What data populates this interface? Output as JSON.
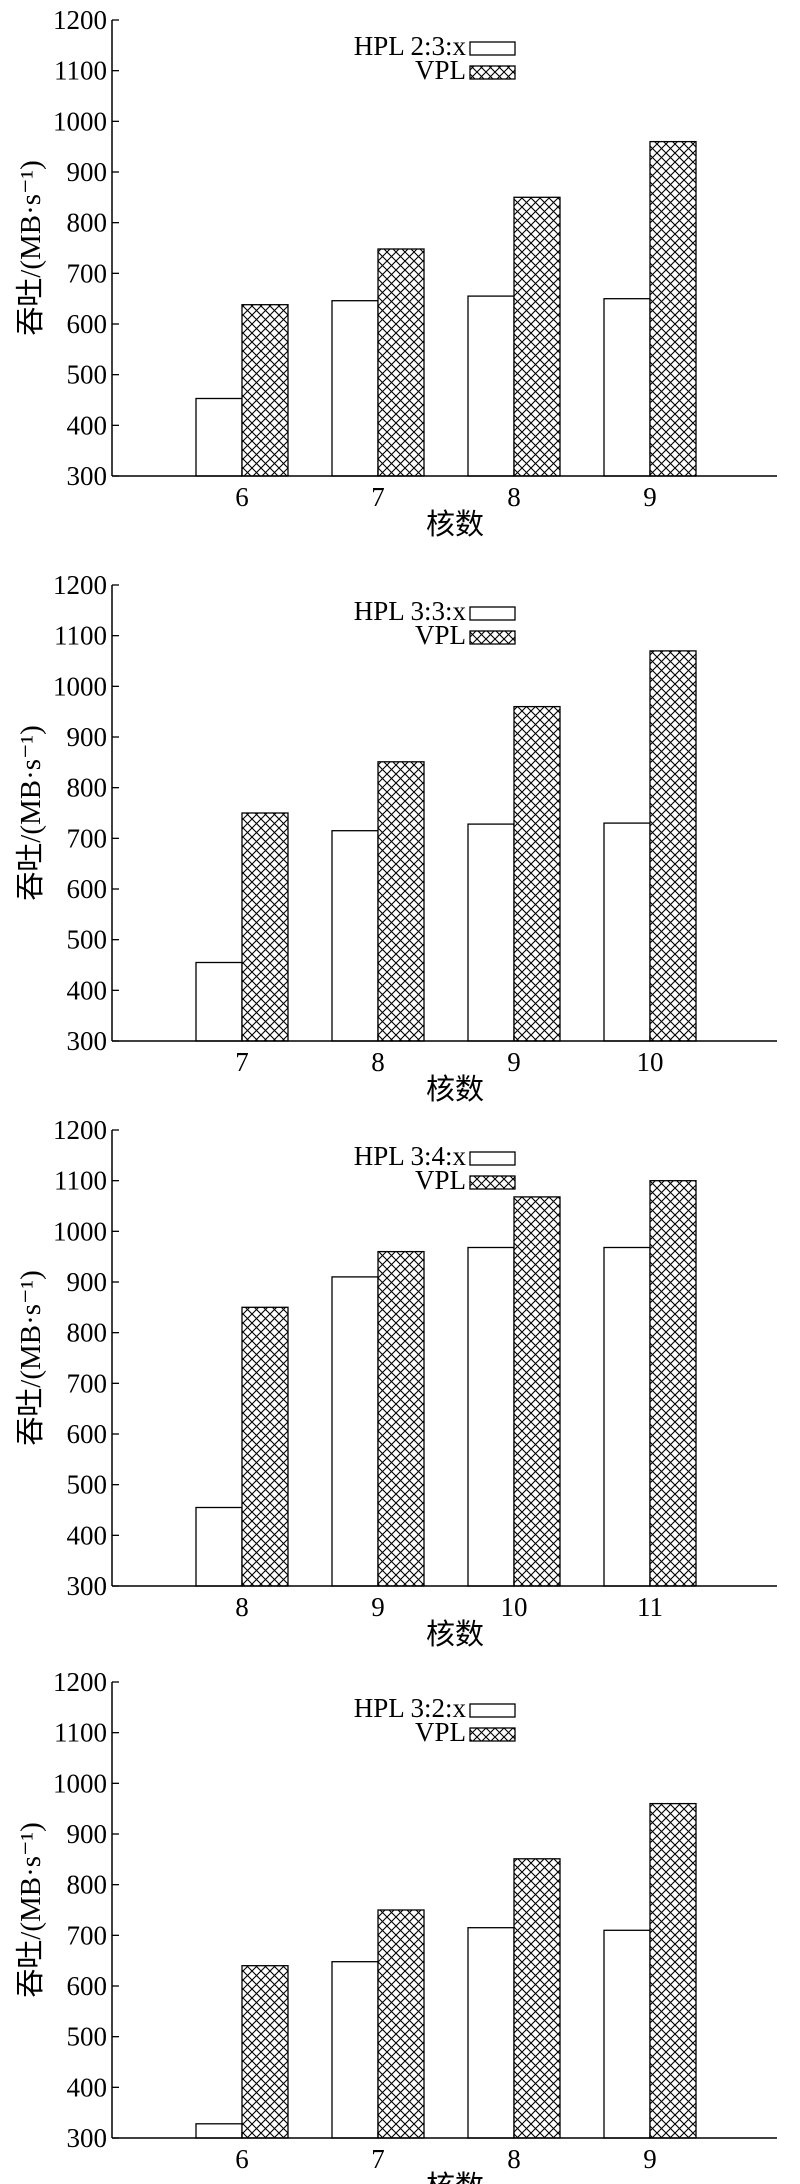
{
  "chart_data": [
    {
      "type": "bar",
      "xlabel": "核数",
      "ylabel": "吞吐/(MB·s⁻¹)",
      "ylim": [
        300,
        1200
      ],
      "yticks": [
        300,
        400,
        500,
        600,
        700,
        800,
        900,
        1000,
        1100,
        1200
      ],
      "categories": [
        "6",
        "7",
        "8",
        "9"
      ],
      "legend_position": "top",
      "series": [
        {
          "name": "HPL 2:3:x",
          "fill": "white",
          "values": [
            453,
            646,
            655,
            650
          ]
        },
        {
          "name": "VPL",
          "fill": "crosshatch",
          "values": [
            638,
            748,
            850,
            960
          ]
        }
      ]
    },
    {
      "type": "bar",
      "xlabel": "核数",
      "ylabel": "吞吐/(MB·s⁻¹)",
      "ylim": [
        300,
        1200
      ],
      "yticks": [
        300,
        400,
        500,
        600,
        700,
        800,
        900,
        1000,
        1100,
        1200
      ],
      "categories": [
        "7",
        "8",
        "9",
        "10"
      ],
      "legend_position": "top",
      "series": [
        {
          "name": "HPL 3:3:x",
          "fill": "white",
          "values": [
            455,
            715,
            728,
            730
          ]
        },
        {
          "name": "VPL",
          "fill": "crosshatch",
          "values": [
            750,
            851,
            960,
            1070
          ]
        }
      ]
    },
    {
      "type": "bar",
      "xlabel": "核数",
      "ylabel": "吞吐/(MB·s⁻¹)",
      "ylim": [
        300,
        1200
      ],
      "yticks": [
        300,
        400,
        500,
        600,
        700,
        800,
        900,
        1000,
        1100,
        1200
      ],
      "categories": [
        "8",
        "9",
        "10",
        "11"
      ],
      "legend_position": "top",
      "series": [
        {
          "name": "HPL 3:4:x",
          "fill": "white",
          "values": [
            455,
            910,
            968,
            968
          ]
        },
        {
          "name": "VPL",
          "fill": "crosshatch",
          "values": [
            850,
            960,
            1068,
            1100
          ]
        }
      ]
    },
    {
      "type": "bar",
      "xlabel": "核数",
      "ylabel": "吞吐/(MB·s⁻¹)",
      "ylim": [
        300,
        1200
      ],
      "yticks": [
        300,
        400,
        500,
        600,
        700,
        800,
        900,
        1000,
        1100,
        1200
      ],
      "categories": [
        "6",
        "7",
        "8",
        "9"
      ],
      "legend_position": "top",
      "series": [
        {
          "name": "HPL 3:2:x",
          "fill": "white",
          "values": [
            328,
            648,
            715,
            710
          ]
        },
        {
          "name": "VPL",
          "fill": "crosshatch",
          "values": [
            640,
            750,
            851,
            960
          ]
        }
      ]
    }
  ]
}
